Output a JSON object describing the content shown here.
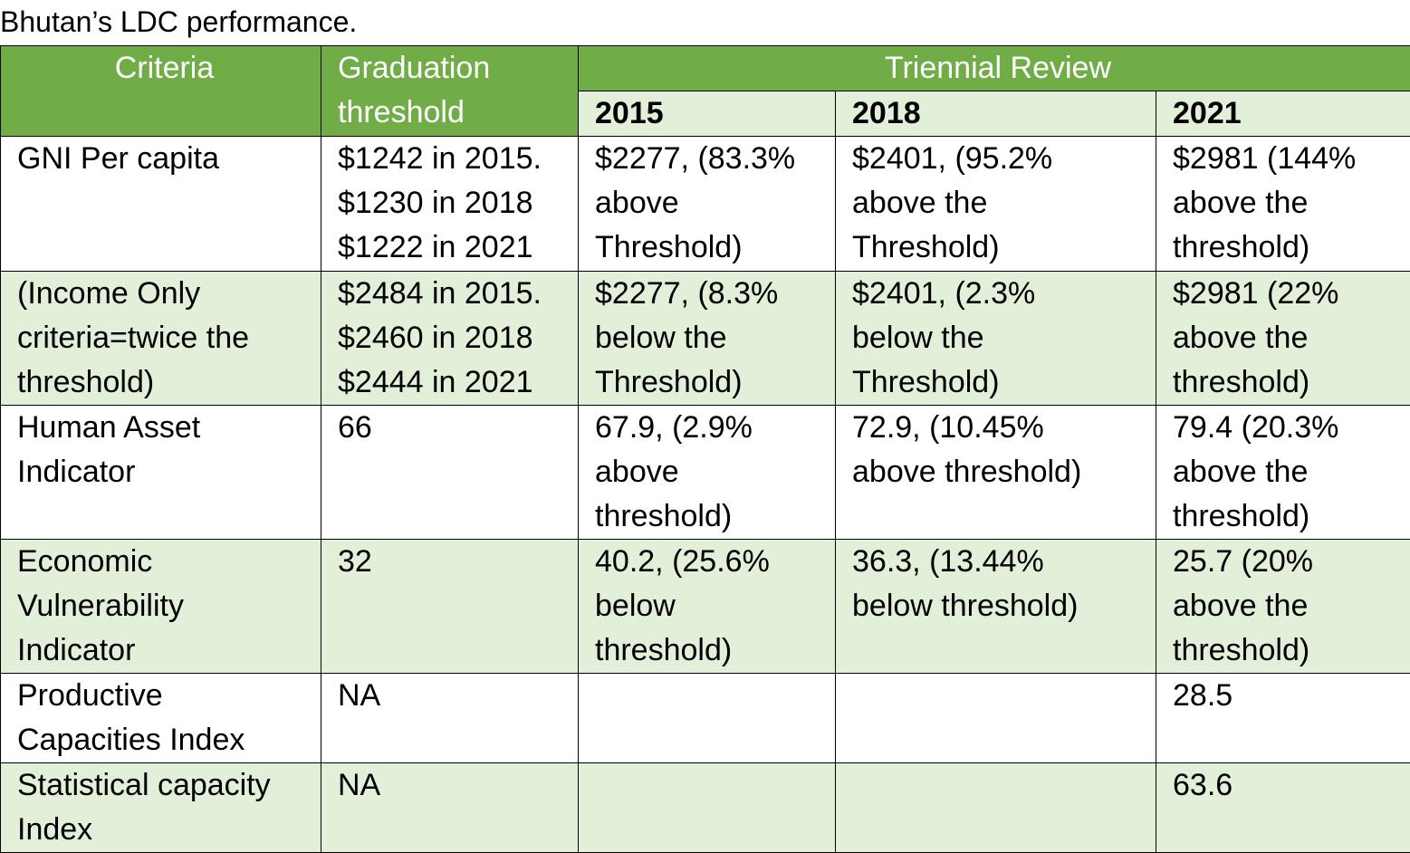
{
  "caption": "Bhutan’s LDC performance.",
  "header": {
    "criteria": "Criteria",
    "graduation_threshold": "Graduation\nthreshold",
    "triennial_review": "Triennial Review",
    "years": [
      "2015",
      "2018",
      "2021"
    ]
  },
  "rows": [
    {
      "criteria": "GNI Per capita",
      "threshold": "$1242 in 2015.\n$1230 in 2018\n$1222 in 2021",
      "y2015": "$2277, (83.3%\nabove\nThreshold)",
      "y2018": "$2401, (95.2%\nabove the\nThreshold)",
      "y2021": "$2981 (144%\nabove the\nthreshold)"
    },
    {
      "criteria": "(Income Only\ncriteria=twice the\nthreshold)",
      "threshold": "$2484 in 2015.\n$2460 in 2018\n$2444 in 2021",
      "y2015": "$2277, (8.3%\nbelow the\nThreshold)",
      "y2018": "$2401, (2.3%\nbelow the\nThreshold)",
      "y2021": "$2981 (22%\nabove the\nthreshold)"
    },
    {
      "criteria": "Human Asset\nIndicator",
      "threshold": "66",
      "y2015": "67.9, (2.9%\nabove\nthreshold)",
      "y2018": "72.9, (10.45%\nabove threshold)",
      "y2021": "79.4 (20.3%\nabove the\nthreshold)"
    },
    {
      "criteria": "Economic\nVulnerability\nIndicator",
      "threshold": "32",
      "y2015": "40.2, (25.6%\nbelow\nthreshold)",
      "y2018": "36.3, (13.44%\nbelow threshold)",
      "y2021": "25.7 (20%\nabove the\nthreshold)"
    },
    {
      "criteria": "Productive\nCapacities Index",
      "threshold": "NA",
      "y2015": "",
      "y2018": "",
      "y2021": "28.5"
    },
    {
      "criteria": "Statistical capacity\nIndex",
      "threshold": "NA",
      "y2015": "",
      "y2018": "",
      "y2021": "63.6"
    }
  ],
  "colors": {
    "header_green": "#70ad47",
    "light_green": "#e2efd9",
    "white": "#ffffff"
  }
}
